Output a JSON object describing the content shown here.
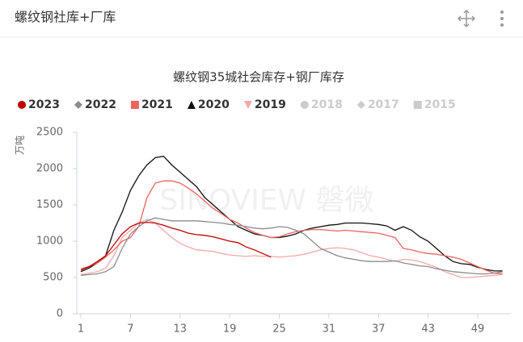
{
  "header": {
    "title": "螺纹钢社库+厂库"
  },
  "chart_data": {
    "type": "line",
    "title": "螺纹钢35城社会库存+钢厂库存",
    "y_label": "万吨",
    "watermark": "SINOVIEW 磐微",
    "x": [
      1,
      2,
      3,
      4,
      5,
      6,
      7,
      8,
      9,
      10,
      11,
      12,
      13,
      14,
      15,
      16,
      17,
      18,
      19,
      20,
      21,
      22,
      23,
      24,
      25,
      26,
      27,
      28,
      29,
      30,
      31,
      32,
      33,
      34,
      35,
      36,
      37,
      38,
      39,
      40,
      41,
      42,
      43,
      44,
      45,
      46,
      47,
      48,
      49,
      50,
      51,
      52
    ],
    "xlim": [
      1,
      53
    ],
    "xticks": [
      1,
      7,
      13,
      19,
      25,
      31,
      37,
      43,
      49
    ],
    "ylim": [
      0,
      2500
    ],
    "yticks": [
      0,
      500,
      1000,
      1500,
      2000,
      2500
    ],
    "series": [
      {
        "name": "2023",
        "color": "#c00000",
        "marker": "circle",
        "values": [
          600,
          650,
          720,
          800,
          950,
          1100,
          1200,
          1250,
          1260,
          1250,
          1220,
          1180,
          1150,
          1110,
          1090,
          1080,
          1060,
          1030,
          1000,
          980,
          920,
          880,
          830,
          780,
          null,
          null,
          null,
          null,
          null,
          null,
          null,
          null,
          null,
          null,
          null,
          null,
          null,
          null,
          null,
          null,
          null,
          null,
          null,
          null,
          null,
          null,
          null,
          null,
          null,
          null,
          null,
          null
        ]
      },
      {
        "name": "2022",
        "color": "#8c8c8c",
        "marker": "diamond",
        "values": [
          530,
          540,
          550,
          580,
          650,
          900,
          1100,
          1200,
          1280,
          1320,
          1300,
          1280,
          1280,
          1280,
          1280,
          1270,
          1260,
          1250,
          1230,
          1220,
          1200,
          1180,
          1170,
          1180,
          1200,
          1190,
          1150,
          1100,
          1000,
          900,
          850,
          800,
          770,
          750,
          730,
          720,
          720,
          720,
          730,
          700,
          680,
          660,
          650,
          620,
          600,
          580,
          570,
          560,
          550,
          550,
          560,
          580
        ]
      },
      {
        "name": "2021",
        "color": "#f0625e",
        "marker": "square",
        "values": [
          620,
          650,
          700,
          780,
          880,
          1000,
          1050,
          1200,
          1600,
          1800,
          1830,
          1830,
          1800,
          1730,
          1650,
          1550,
          1450,
          1380,
          1300,
          1250,
          1180,
          1120,
          1080,
          1050,
          1060,
          1100,
          1130,
          1150,
          1160,
          1160,
          1150,
          1140,
          1150,
          1140,
          1130,
          1120,
          1110,
          1080,
          1050,
          900,
          880,
          850,
          830,
          820,
          800,
          780,
          750,
          700,
          650,
          600,
          560,
          550
        ]
      },
      {
        "name": "2020",
        "color": "#111111",
        "marker": "triangle",
        "values": [
          580,
          630,
          700,
          800,
          1150,
          1400,
          1700,
          1900,
          2050,
          2150,
          2170,
          2050,
          1950,
          1850,
          1750,
          1600,
          1500,
          1400,
          1300,
          1200,
          1150,
          1100,
          1080,
          1050,
          1050,
          1070,
          1100,
          1150,
          1180,
          1200,
          1220,
          1230,
          1250,
          1250,
          1250,
          1240,
          1230,
          1210,
          1150,
          1200,
          1150,
          1060,
          1000,
          900,
          800,
          720,
          690,
          680,
          640,
          610,
          590,
          590
        ]
      },
      {
        "name": "2019",
        "color": "#f7a8a8",
        "marker": "triangle-down",
        "values": [
          540,
          560,
          580,
          630,
          800,
          1050,
          1150,
          1250,
          1300,
          1250,
          1150,
          1050,
          970,
          920,
          880,
          870,
          860,
          830,
          810,
          800,
          790,
          800,
          790,
          790,
          780,
          790,
          800,
          820,
          850,
          880,
          900,
          910,
          900,
          880,
          840,
          800,
          780,
          750,
          720,
          750,
          740,
          720,
          680,
          640,
          580,
          540,
          500,
          500,
          510,
          520,
          530,
          540
        ]
      },
      {
        "name": "2018",
        "color": "#cccccc",
        "marker": "circle",
        "visible": false
      },
      {
        "name": "2017",
        "color": "#cccccc",
        "marker": "diamond",
        "visible": false
      },
      {
        "name": "2015",
        "color": "#cccccc",
        "marker": "square",
        "visible": false
      }
    ]
  }
}
